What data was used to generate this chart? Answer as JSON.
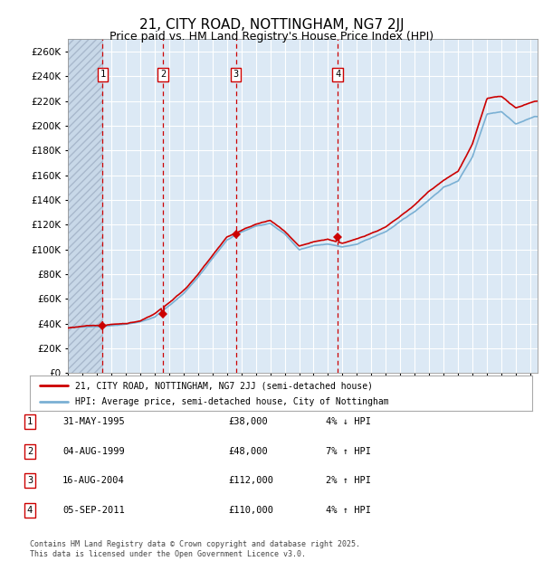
{
  "title": "21, CITY ROAD, NOTTINGHAM, NG7 2JJ",
  "subtitle": "Price paid vs. HM Land Registry's House Price Index (HPI)",
  "title_fontsize": 11,
  "subtitle_fontsize": 9,
  "background_color": "#ffffff",
  "plot_bg_color": "#dce9f5",
  "grid_color": "#ffffff",
  "ylim": [
    0,
    270000
  ],
  "yticks": [
    0,
    20000,
    40000,
    60000,
    80000,
    100000,
    120000,
    140000,
    160000,
    180000,
    200000,
    220000,
    240000,
    260000
  ],
  "ytick_labels": [
    "£0",
    "£20K",
    "£40K",
    "£60K",
    "£80K",
    "£100K",
    "£120K",
    "£140K",
    "£160K",
    "£180K",
    "£200K",
    "£220K",
    "£240K",
    "£260K"
  ],
  "line_color_price": "#cc0000",
  "line_color_hpi": "#7ab0d4",
  "transactions": [
    {
      "date": 1995.41,
      "price": 38000,
      "label": "1"
    },
    {
      "date": 1999.58,
      "price": 48000,
      "label": "2"
    },
    {
      "date": 2004.62,
      "price": 112000,
      "label": "3"
    },
    {
      "date": 2011.67,
      "price": 110000,
      "label": "4"
    }
  ],
  "vline_dates": [
    1995.41,
    1999.58,
    2004.62,
    2011.67
  ],
  "legend_price_label": "21, CITY ROAD, NOTTINGHAM, NG7 2JJ (semi-detached house)",
  "legend_hpi_label": "HPI: Average price, semi-detached house, City of Nottingham",
  "table_entries": [
    {
      "num": "1",
      "date": "31-MAY-1995",
      "price": "£38,000",
      "hpi": "4% ↓ HPI"
    },
    {
      "num": "2",
      "date": "04-AUG-1999",
      "price": "£48,000",
      "hpi": "7% ↑ HPI"
    },
    {
      "num": "3",
      "date": "16-AUG-2004",
      "price": "£112,000",
      "hpi": "2% ↑ HPI"
    },
    {
      "num": "4",
      "date": "05-SEP-2011",
      "price": "£110,000",
      "hpi": "4% ↑ HPI"
    }
  ],
  "footer_text": "Contains HM Land Registry data © Crown copyright and database right 2025.\nThis data is licensed under the Open Government Licence v3.0.",
  "xmin": 1993.0,
  "xmax": 2025.5
}
